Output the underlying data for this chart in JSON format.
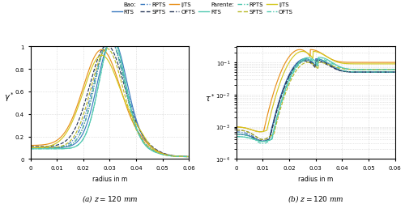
{
  "c_bao_rts": "#3a7abf",
  "c_bao_rpts": "#3a7abf",
  "c_bao_spts": "#2a3a5a",
  "c_bao_ijts": "#e8901a",
  "c_bao_ofts": "#2a3a5a",
  "c_par_rts": "#50c8b0",
  "c_par_rpts": "#50c8b0",
  "c_par_spts": "#b8b828",
  "c_par_ijts": "#d4c820",
  "c_par_ofts": "#50c8b0",
  "xlabel": "radius in m",
  "ylabel_left": "$\\gamma^*$",
  "ylabel_right": "$\\tau^*$",
  "caption_left": "(a) $z = 120$ mm",
  "caption_right": "(b) $z = 120$ mm",
  "xlim": [
    0,
    0.06
  ],
  "background": "#ffffff"
}
